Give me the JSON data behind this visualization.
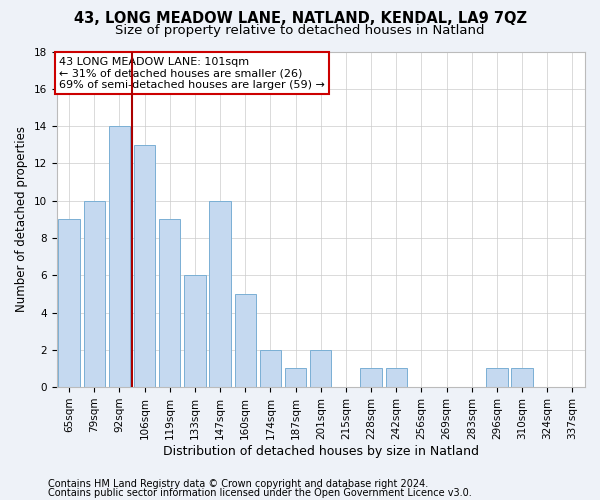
{
  "title1": "43, LONG MEADOW LANE, NATLAND, KENDAL, LA9 7QZ",
  "title2": "Size of property relative to detached houses in Natland",
  "xlabel": "Distribution of detached houses by size in Natland",
  "ylabel": "Number of detached properties",
  "categories": [
    "65sqm",
    "79sqm",
    "92sqm",
    "106sqm",
    "119sqm",
    "133sqm",
    "147sqm",
    "160sqm",
    "174sqm",
    "187sqm",
    "201sqm",
    "215sqm",
    "228sqm",
    "242sqm",
    "256sqm",
    "269sqm",
    "283sqm",
    "296sqm",
    "310sqm",
    "324sqm",
    "337sqm"
  ],
  "values": [
    9,
    10,
    14,
    13,
    9,
    6,
    10,
    5,
    2,
    1,
    2,
    0,
    1,
    1,
    0,
    0,
    0,
    1,
    1,
    0,
    0
  ],
  "bar_color": "#c5d9f0",
  "bar_edgecolor": "#7aafd4",
  "vline_x": 2.5,
  "vline_color": "#aa0000",
  "annotation_line1": "43 LONG MEADOW LANE: 101sqm",
  "annotation_line2": "← 31% of detached houses are smaller (26)",
  "annotation_line3": "69% of semi-detached houses are larger (59) →",
  "annotation_box_color": "#ffffff",
  "annotation_box_edgecolor": "#cc0000",
  "ylim": [
    0,
    18
  ],
  "yticks": [
    0,
    2,
    4,
    6,
    8,
    10,
    12,
    14,
    16,
    18
  ],
  "footer1": "Contains HM Land Registry data © Crown copyright and database right 2024.",
  "footer2": "Contains public sector information licensed under the Open Government Licence v3.0.",
  "bg_color": "#eef2f8",
  "plot_bg_color": "#ffffff",
  "grid_color": "#cccccc",
  "title1_fontsize": 10.5,
  "title2_fontsize": 9.5,
  "xlabel_fontsize": 9,
  "ylabel_fontsize": 8.5,
  "tick_fontsize": 7.5,
  "annotation_fontsize": 8,
  "footer_fontsize": 7
}
